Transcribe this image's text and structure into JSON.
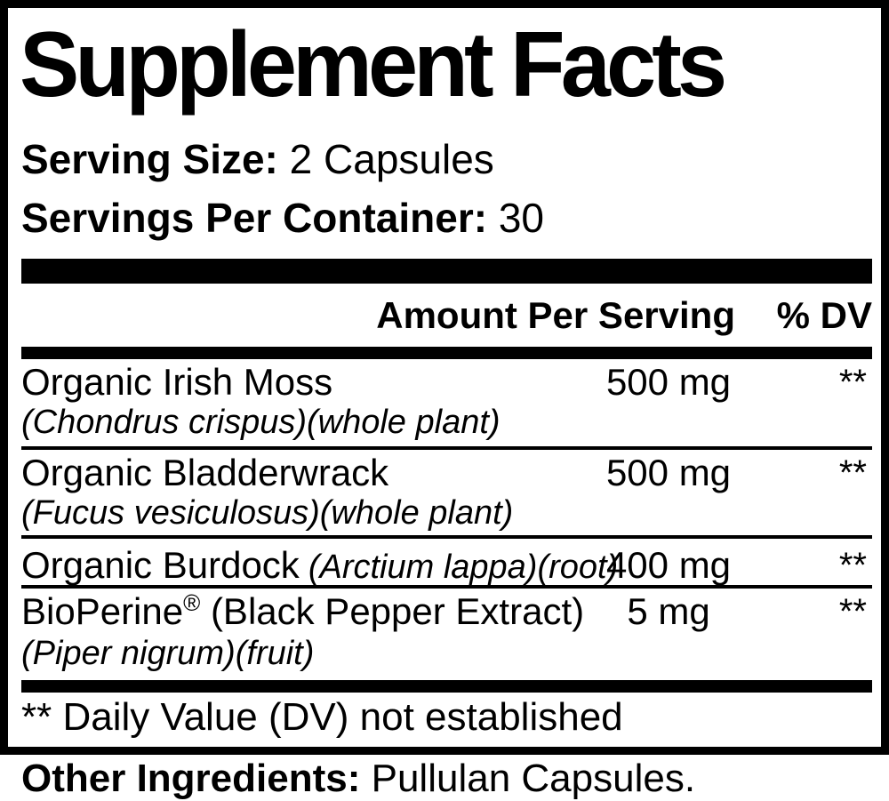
{
  "colors": {
    "ink": "#000000",
    "background": "#ffffff"
  },
  "label": {
    "title": "Supplement Facts",
    "serving_size_label": "Serving Size:",
    "serving_size_value": "2 Capsules",
    "servings_per_container_label": "Servings Per Container:",
    "servings_per_container_value": "30",
    "header": {
      "amount": "Amount Per Serving",
      "dv": "% DV"
    },
    "rows": [
      {
        "name": "Organic Irish Moss",
        "latin": "(Chondrus crispus)(whole plant)",
        "amount": "500 mg",
        "dv": "**"
      },
      {
        "name": "Organic Bladderwrack",
        "latin": "(Fucus vesiculosus)(whole plant)",
        "amount": "500 mg",
        "dv": "**"
      },
      {
        "name": "Organic Burdock",
        "latin_inline": "(Arctium lappa)(root)",
        "amount": "400 mg",
        "dv": "**"
      },
      {
        "name": "BioPerine",
        "trademark": "®",
        "name_suffix": " (Black Pepper Extract)",
        "latin": "(Piper nigrum)(fruit)",
        "amount": "5 mg",
        "dv": "**"
      }
    ],
    "footnote": "** Daily Value (DV) not established",
    "other_ingredients_label": "Other Ingredients:",
    "other_ingredients_value": "Pullulan Capsules."
  }
}
